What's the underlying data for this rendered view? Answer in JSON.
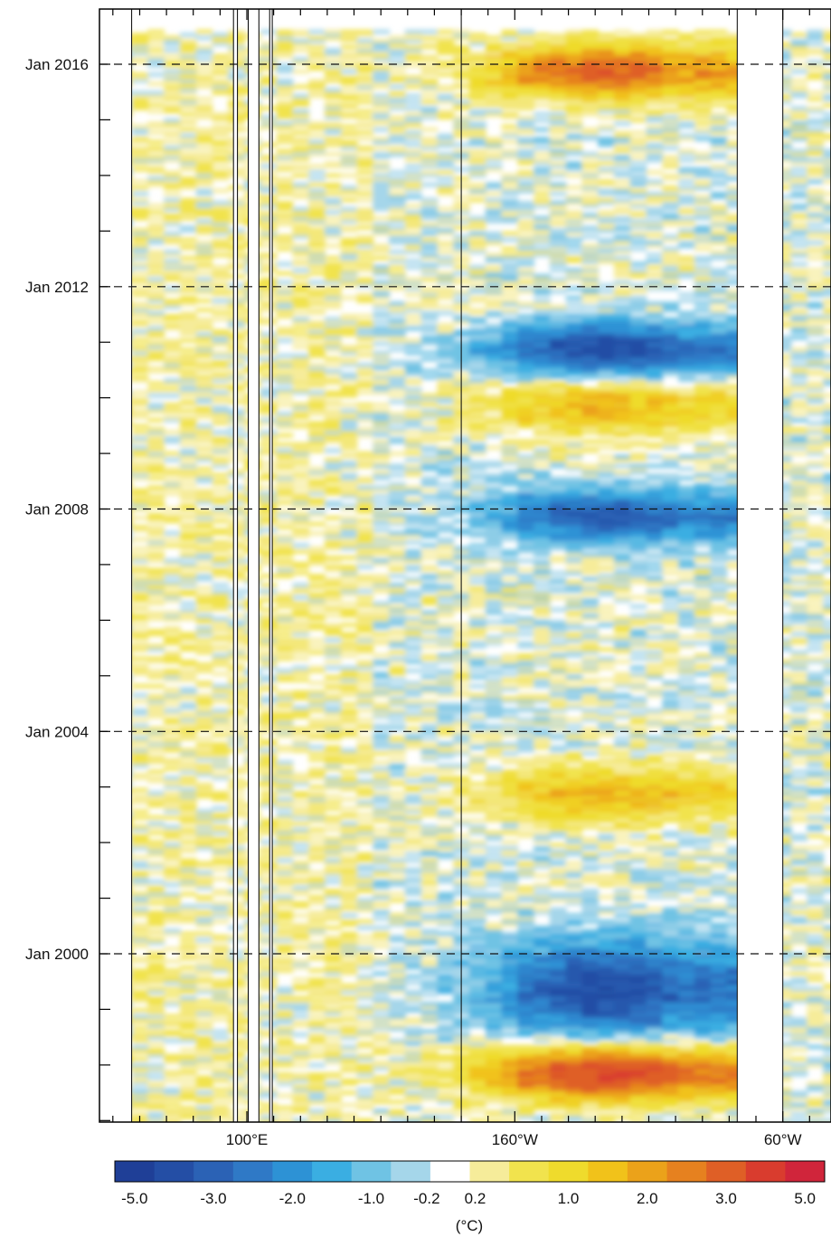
{
  "chart_data": {
    "type": "heatmap",
    "title": "",
    "xlabel": "",
    "ylabel": "",
    "y_ticks": [
      "Jan 2000",
      "Jan 2004",
      "Jan 2008",
      "Jan 2012",
      "Jan 2016"
    ],
    "x_ticks": [
      "100°E",
      "160°W",
      "60°W"
    ],
    "y_range": [
      "Oct 1996",
      "Apr 2016"
    ],
    "x_range_deg_east": [
      45,
      318
    ],
    "colorbar": {
      "unit_label": "(°C)",
      "levels": [
        -5.0,
        -4.0,
        -3.0,
        -2.5,
        -2.0,
        -1.5,
        -1.0,
        -0.5,
        -0.2,
        0.2,
        0.5,
        1.0,
        1.5,
        2.0,
        2.5,
        3.0,
        4.0,
        5.0
      ],
      "tick_labels": [
        "-5.0",
        "-3.0",
        "-2.0",
        "-1.0",
        "-0.2",
        "0.2",
        "1.0",
        "2.0",
        "3.0",
        "5.0"
      ],
      "colors": [
        "#1f3f97",
        "#244ea5",
        "#2b62b5",
        "#2f79c6",
        "#2d92d5",
        "#3aaee2",
        "#6fc3e4",
        "#a5d6ea",
        "#ffffff",
        "#f6ec9a",
        "#f1e34d",
        "#efdb2c",
        "#f1c21a",
        "#eba21a",
        "#e6811f",
        "#df5f26",
        "#d93c2e",
        "#d0253b"
      ]
    },
    "anomaly_events": [
      {
        "period": "1997–1998",
        "sign": "warm",
        "peak_c": 4.5,
        "region": "central–eastern Pacific"
      },
      {
        "period": "1998–2000",
        "sign": "cold",
        "peak_c": -3.5,
        "region": "central–eastern Pacific"
      },
      {
        "period": "2002–2003",
        "sign": "warm",
        "peak_c": 2.0,
        "region": "central–eastern Pacific"
      },
      {
        "period": "2007–2008",
        "sign": "cold",
        "peak_c": -3.0,
        "region": "central–eastern Pacific"
      },
      {
        "period": "2009–2010",
        "sign": "warm",
        "peak_c": 2.0,
        "region": "central–eastern Pacific"
      },
      {
        "period": "2010–2011",
        "sign": "cold",
        "peak_c": -3.5,
        "region": "central–eastern Pacific"
      },
      {
        "period": "2015–2016",
        "sign": "warm",
        "peak_c": 3.5,
        "region": "central–eastern Pacific"
      }
    ],
    "dashed_gridlines_at": [
      "Jan 2000",
      "Jan 2004",
      "Jan 2008",
      "Jan 2012",
      "Jan 2016"
    ],
    "land_gaps": true
  }
}
